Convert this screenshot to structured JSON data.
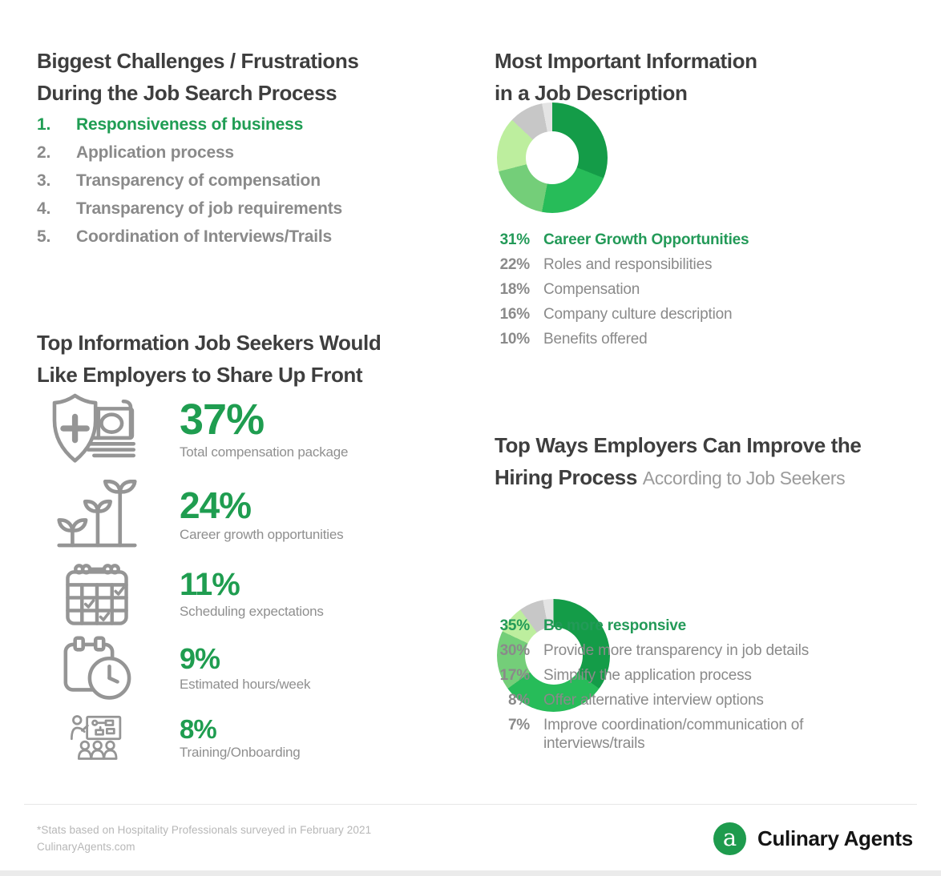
{
  "colors": {
    "accent_green": "#1f9d53",
    "legend_green": "#239a58",
    "heading_gray": "#3e3e3e",
    "body_gray": "#8a8a8a",
    "icon_gray": "#959595",
    "footnote_gray": "#b7b7b7",
    "logo_green": "#1e9b4d"
  },
  "challenges": {
    "title_line1": "Biggest Challenges / Frustrations",
    "title_line2": "During the Job Search Process",
    "items": [
      {
        "num": "1.",
        "label": "Responsiveness of business",
        "highlight": true
      },
      {
        "num": "2.",
        "label": "Application process",
        "highlight": false
      },
      {
        "num": "3.",
        "label": "Transparency of compensation",
        "highlight": false
      },
      {
        "num": "4.",
        "label": "Transparency of job requirements",
        "highlight": false
      },
      {
        "num": "5.",
        "label": "Coordination of Interviews/Trails",
        "highlight": false
      }
    ]
  },
  "share_up_front": {
    "title_line1": "Top Information Job Seekers Would",
    "title_line2": "Like Employers to Share Up Front",
    "stats": [
      {
        "icon": "shield-money-icon",
        "pct": "37%",
        "label": "Total compensation package"
      },
      {
        "icon": "growth-plants-icon",
        "pct": "24%",
        "label": "Career growth opportunities"
      },
      {
        "icon": "calendar-checks-icon",
        "pct": "11%",
        "label": "Scheduling expectations"
      },
      {
        "icon": "calendar-clock-icon",
        "pct": "9%",
        "label": "Estimated hours/week"
      },
      {
        "icon": "training-icon",
        "pct": "8%",
        "label": "Training/Onboarding"
      }
    ]
  },
  "job_description": {
    "title_line1": "Most Important Information",
    "title_line2": "in a Job Description"
  },
  "hiring_process": {
    "title_line1": "Top Ways Employers Can Improve the",
    "title_line2_bold": "Hiring Process",
    "title_line2_light": "According to Job Seekers"
  },
  "footer": {
    "note_line1": "*Stats based on Hospitality Professionals surveyed in February 2021",
    "note_line2": "CulinaryAgents.com",
    "logo_mark": "a",
    "logo_text": "Culinary Agents"
  },
  "chart_data": [
    {
      "type": "pie",
      "subtype": "donut",
      "title": "Most Important Information in a Job Description",
      "start_angle_deg": 0,
      "direction": "clockwise",
      "legend_position": "below",
      "slices": [
        {
          "label": "Career Growth Opportunities",
          "value": 31,
          "color": "#149c48",
          "highlight": true
        },
        {
          "label": "Roles and responsibilities",
          "value": 22,
          "color": "#27bc59"
        },
        {
          "label": "Compensation",
          "value": 18,
          "color": "#74ce79"
        },
        {
          "label": "Company culture description",
          "value": 16,
          "color": "#bdee9e"
        },
        {
          "label": "Benefits offered",
          "value": 10,
          "color": "#c7c7c7"
        },
        {
          "label": "",
          "value": 3,
          "color": "#e4e4e4",
          "unlabeled_remainder": true
        }
      ]
    },
    {
      "type": "pie",
      "subtype": "donut",
      "title": "Top Ways Employers Can Improve the Hiring Process (According to Job Seekers)",
      "start_angle_deg": 0,
      "direction": "clockwise",
      "legend_position": "below",
      "slices": [
        {
          "label": "Be more responsive",
          "value": 35,
          "color": "#149c48",
          "highlight": true
        },
        {
          "label": "Provide more transparency in job details",
          "value": 30,
          "color": "#27bc59"
        },
        {
          "label": "Simplify the application process",
          "value": 17,
          "color": "#74ce79"
        },
        {
          "label": "Offer alternative interview options",
          "value": 8,
          "color": "#bdee9e"
        },
        {
          "label": "Improve coordination/communication of interviews/trails",
          "value": 7,
          "color": "#c7c7c7"
        },
        {
          "label": "",
          "value": 3,
          "color": "#e4e4e4",
          "unlabeled_remainder": true
        }
      ]
    }
  ]
}
